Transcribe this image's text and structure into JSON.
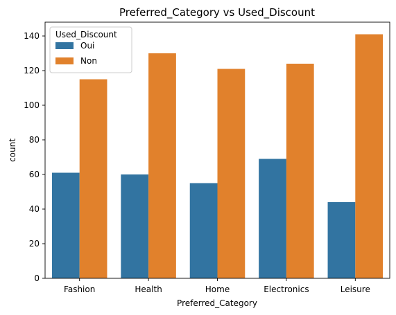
{
  "chart_data": {
    "type": "bar",
    "title": "Preferred_Category vs Used_Discount",
    "xlabel": "Preferred_Category",
    "ylabel": "count",
    "categories": [
      "Fashion",
      "Health",
      "Home",
      "Electronics",
      "Leisure"
    ],
    "series": [
      {
        "name": "Oui",
        "color": "#3274a1",
        "values": [
          61,
          60,
          55,
          69,
          44
        ]
      },
      {
        "name": "Non",
        "color": "#e1812c",
        "values": [
          115,
          130,
          121,
          124,
          141
        ]
      }
    ],
    "ylim": [
      0,
      148
    ],
    "yticks": [
      0,
      20,
      40,
      60,
      80,
      100,
      120,
      140
    ],
    "grid": false,
    "legend": {
      "title": "Used_Discount",
      "placement": "top-left"
    }
  }
}
